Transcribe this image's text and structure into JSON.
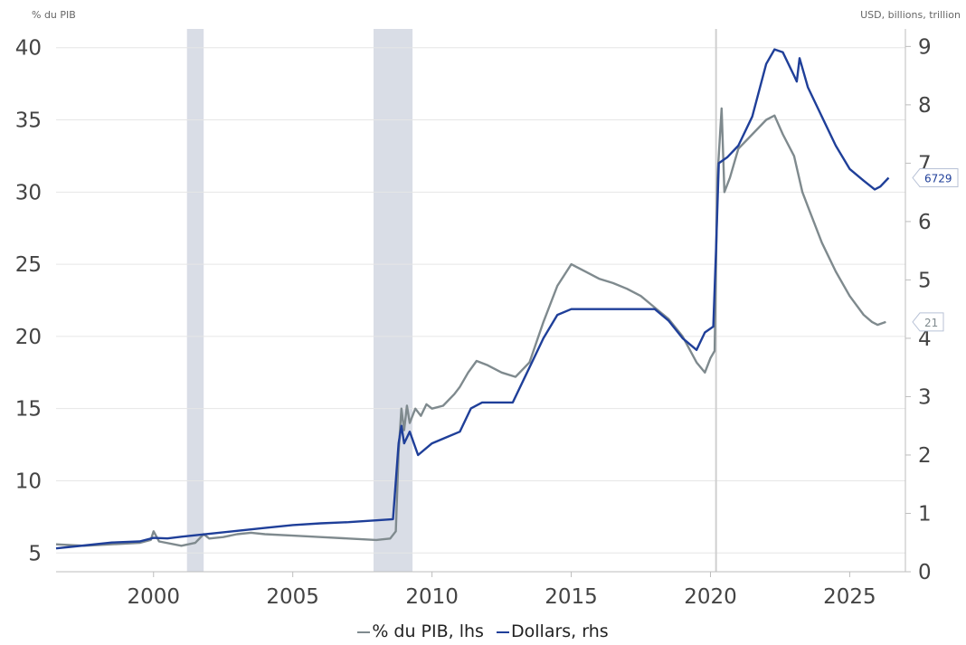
{
  "chart_data": {
    "type": "line",
    "title": "",
    "lhs_label": "% du PIB",
    "rhs_label": "USD, billions, trillion",
    "x_ticks": [
      "2000",
      "2005",
      "2010",
      "2015",
      "2020",
      "2025"
    ],
    "y_left_ticks": [
      "5",
      "10",
      "15",
      "20",
      "25",
      "30",
      "35",
      "40"
    ],
    "y_right_ticks": [
      "0",
      "1",
      "2",
      "3",
      "4",
      "5",
      "6",
      "7",
      "8",
      "9"
    ],
    "x_range": [
      1996.5,
      2027.0
    ],
    "y_left_range": [
      3.7,
      41.3
    ],
    "y_right_range": [
      0,
      9.3
    ],
    "grid": true,
    "shaded_periods": [
      [
        2001.2,
        2001.8
      ],
      [
        2007.9,
        2009.3
      ]
    ],
    "vertical_line": 2020.2,
    "legend_position": "bottom",
    "series": [
      {
        "name": "% du PIB, lhs",
        "axis": "left",
        "color": "#7f8a8e",
        "end_label": "21",
        "points": [
          [
            1996.5,
            5.6
          ],
          [
            1997.5,
            5.5
          ],
          [
            1998.5,
            5.6
          ],
          [
            1999.5,
            5.7
          ],
          [
            1999.9,
            5.9
          ],
          [
            2000.0,
            6.5
          ],
          [
            2000.2,
            5.8
          ],
          [
            2001.0,
            5.5
          ],
          [
            2001.5,
            5.7
          ],
          [
            2001.8,
            6.3
          ],
          [
            2002.0,
            6.0
          ],
          [
            2002.5,
            6.1
          ],
          [
            2003.0,
            6.3
          ],
          [
            2003.5,
            6.4
          ],
          [
            2004.0,
            6.3
          ],
          [
            2005.0,
            6.2
          ],
          [
            2006.0,
            6.1
          ],
          [
            2007.0,
            6.0
          ],
          [
            2008.0,
            5.9
          ],
          [
            2008.5,
            6.0
          ],
          [
            2008.7,
            6.5
          ],
          [
            2008.8,
            12.0
          ],
          [
            2008.9,
            15.0
          ],
          [
            2009.0,
            13.5
          ],
          [
            2009.1,
            15.2
          ],
          [
            2009.2,
            14.0
          ],
          [
            2009.4,
            15.0
          ],
          [
            2009.6,
            14.5
          ],
          [
            2009.8,
            15.3
          ],
          [
            2010.0,
            15.0
          ],
          [
            2010.4,
            15.2
          ],
          [
            2010.8,
            16.0
          ],
          [
            2011.0,
            16.5
          ],
          [
            2011.3,
            17.5
          ],
          [
            2011.6,
            18.3
          ],
          [
            2012.0,
            18.0
          ],
          [
            2012.5,
            17.5
          ],
          [
            2013.0,
            17.2
          ],
          [
            2013.5,
            18.2
          ],
          [
            2014.0,
            21.0
          ],
          [
            2014.5,
            23.5
          ],
          [
            2015.0,
            25.0
          ],
          [
            2015.5,
            24.5
          ],
          [
            2016.0,
            24.0
          ],
          [
            2016.5,
            23.7
          ],
          [
            2017.0,
            23.3
          ],
          [
            2017.5,
            22.8
          ],
          [
            2018.0,
            22.0
          ],
          [
            2018.5,
            21.2
          ],
          [
            2019.0,
            20.0
          ],
          [
            2019.5,
            18.2
          ],
          [
            2019.8,
            17.5
          ],
          [
            2020.0,
            18.5
          ],
          [
            2020.15,
            19.0
          ],
          [
            2020.25,
            31.0
          ],
          [
            2020.4,
            35.8
          ],
          [
            2020.5,
            30.0
          ],
          [
            2020.7,
            31.0
          ],
          [
            2021.0,
            33.0
          ],
          [
            2021.5,
            34.0
          ],
          [
            2022.0,
            35.0
          ],
          [
            2022.3,
            35.3
          ],
          [
            2022.6,
            34.0
          ],
          [
            2023.0,
            32.5
          ],
          [
            2023.3,
            30.0
          ],
          [
            2023.5,
            29.0
          ],
          [
            2024.0,
            26.5
          ],
          [
            2024.5,
            24.5
          ],
          [
            2025.0,
            22.8
          ],
          [
            2025.5,
            21.5
          ],
          [
            2025.8,
            21.0
          ],
          [
            2026.0,
            20.8
          ],
          [
            2026.3,
            21.0
          ]
        ]
      },
      {
        "name": "Dollars, rhs",
        "axis": "right",
        "color": "#1f3f99",
        "end_label": "6729",
        "points": [
          [
            1996.5,
            0.4
          ],
          [
            1997.5,
            0.45
          ],
          [
            1998.5,
            0.5
          ],
          [
            1999.5,
            0.52
          ],
          [
            2000.0,
            0.58
          ],
          [
            2000.5,
            0.57
          ],
          [
            2001.0,
            0.6
          ],
          [
            2002.0,
            0.65
          ],
          [
            2003.0,
            0.7
          ],
          [
            2004.0,
            0.75
          ],
          [
            2005.0,
            0.8
          ],
          [
            2006.0,
            0.83
          ],
          [
            2007.0,
            0.85
          ],
          [
            2008.0,
            0.88
          ],
          [
            2008.6,
            0.9
          ],
          [
            2008.8,
            2.2
          ],
          [
            2008.9,
            2.5
          ],
          [
            2009.0,
            2.2
          ],
          [
            2009.2,
            2.4
          ],
          [
            2009.5,
            2.0
          ],
          [
            2010.0,
            2.2
          ],
          [
            2010.5,
            2.3
          ],
          [
            2011.0,
            2.4
          ],
          [
            2011.4,
            2.8
          ],
          [
            2011.8,
            2.9
          ],
          [
            2012.3,
            2.9
          ],
          [
            2012.9,
            2.9
          ],
          [
            2013.5,
            3.5
          ],
          [
            2014.0,
            4.0
          ],
          [
            2014.5,
            4.4
          ],
          [
            2015.0,
            4.5
          ],
          [
            2016.0,
            4.5
          ],
          [
            2017.0,
            4.5
          ],
          [
            2018.0,
            4.5
          ],
          [
            2018.5,
            4.3
          ],
          [
            2019.0,
            4.0
          ],
          [
            2019.5,
            3.8
          ],
          [
            2019.8,
            4.1
          ],
          [
            2020.1,
            4.2
          ],
          [
            2020.2,
            5.5
          ],
          [
            2020.3,
            7.0
          ],
          [
            2020.6,
            7.1
          ],
          [
            2021.0,
            7.3
          ],
          [
            2021.5,
            7.8
          ],
          [
            2022.0,
            8.7
          ],
          [
            2022.3,
            8.95
          ],
          [
            2022.6,
            8.9
          ],
          [
            2023.0,
            8.5
          ],
          [
            2023.1,
            8.4
          ],
          [
            2023.2,
            8.8
          ],
          [
            2023.5,
            8.3
          ],
          [
            2024.0,
            7.8
          ],
          [
            2024.5,
            7.3
          ],
          [
            2025.0,
            6.9
          ],
          [
            2025.5,
            6.7
          ],
          [
            2025.9,
            6.55
          ],
          [
            2026.1,
            6.6
          ],
          [
            2026.4,
            6.75
          ]
        ]
      }
    ]
  }
}
